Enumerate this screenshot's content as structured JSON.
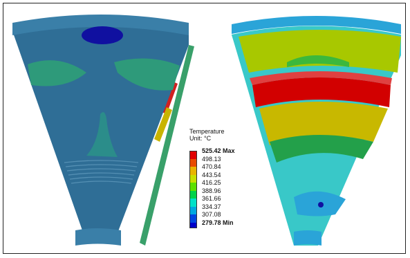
{
  "legend": {
    "title": "Temperature",
    "unit": "Unit: °C",
    "max_label": "525.42 Max",
    "min_label": "279.78 Min",
    "levels": [
      {
        "label": "525.42 Max",
        "color": "#e00000",
        "bold": true
      },
      {
        "label": "498.13",
        "color": "#e84b00",
        "bold": false
      },
      {
        "label": "470.84",
        "color": "#e9b400",
        "bold": false
      },
      {
        "label": "443.54",
        "color": "#c8e000",
        "bold": false
      },
      {
        "label": "416.25",
        "color": "#5ee000",
        "bold": false
      },
      {
        "label": "388.96",
        "color": "#00d24a",
        "bold": false
      },
      {
        "label": "361.66",
        "color": "#00e1c8",
        "bold": false
      },
      {
        "label": "334.37",
        "color": "#00a8e0",
        "bold": false
      },
      {
        "label": "307.08",
        "color": "#0046e0",
        "bold": false
      },
      {
        "label": "279.78 Min",
        "color": "#0000c8",
        "bold": true
      }
    ]
  },
  "colors": {
    "base_blue": "#2f6e96",
    "teal_green": "#2ea280",
    "cyan": "#39c8c8",
    "light_blue": "#2aa4d8",
    "hot_red": "#d20000",
    "yellow": "#c8c000",
    "lime": "#8cc800",
    "green": "#19a040",
    "deep_blue": "#1010a0"
  }
}
